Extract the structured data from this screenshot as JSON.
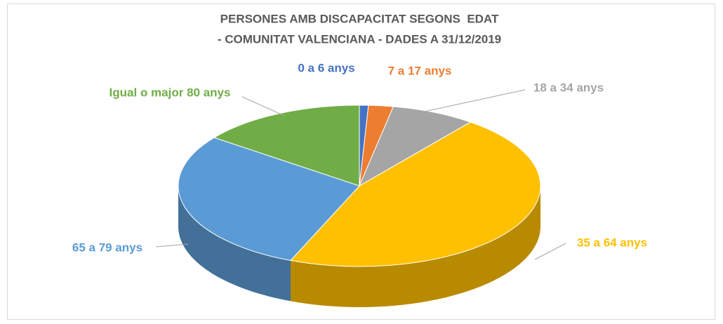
{
  "chart_data": {
    "type": "pie",
    "title": "PERSONES AMB DISCAPACITAT SEGONS  EDAT",
    "subtitle": "- COMUNITAT VALENCIANA - DADES A 31/12/2019",
    "categories": [
      "0 a 6 anys",
      "7 a 17 anys",
      "18 a 34 anys",
      "35 a 64 anys",
      "65 a 79 anys",
      "Igual o major 80 anys"
    ],
    "values": [
      0.8,
      2.2,
      7.5,
      45.7,
      29,
      14.8
    ],
    "colors": [
      "#4472c4",
      "#ed7d31",
      "#a5a5a5",
      "#ffc000",
      "#5b9bd5",
      "#70ad47"
    ]
  }
}
